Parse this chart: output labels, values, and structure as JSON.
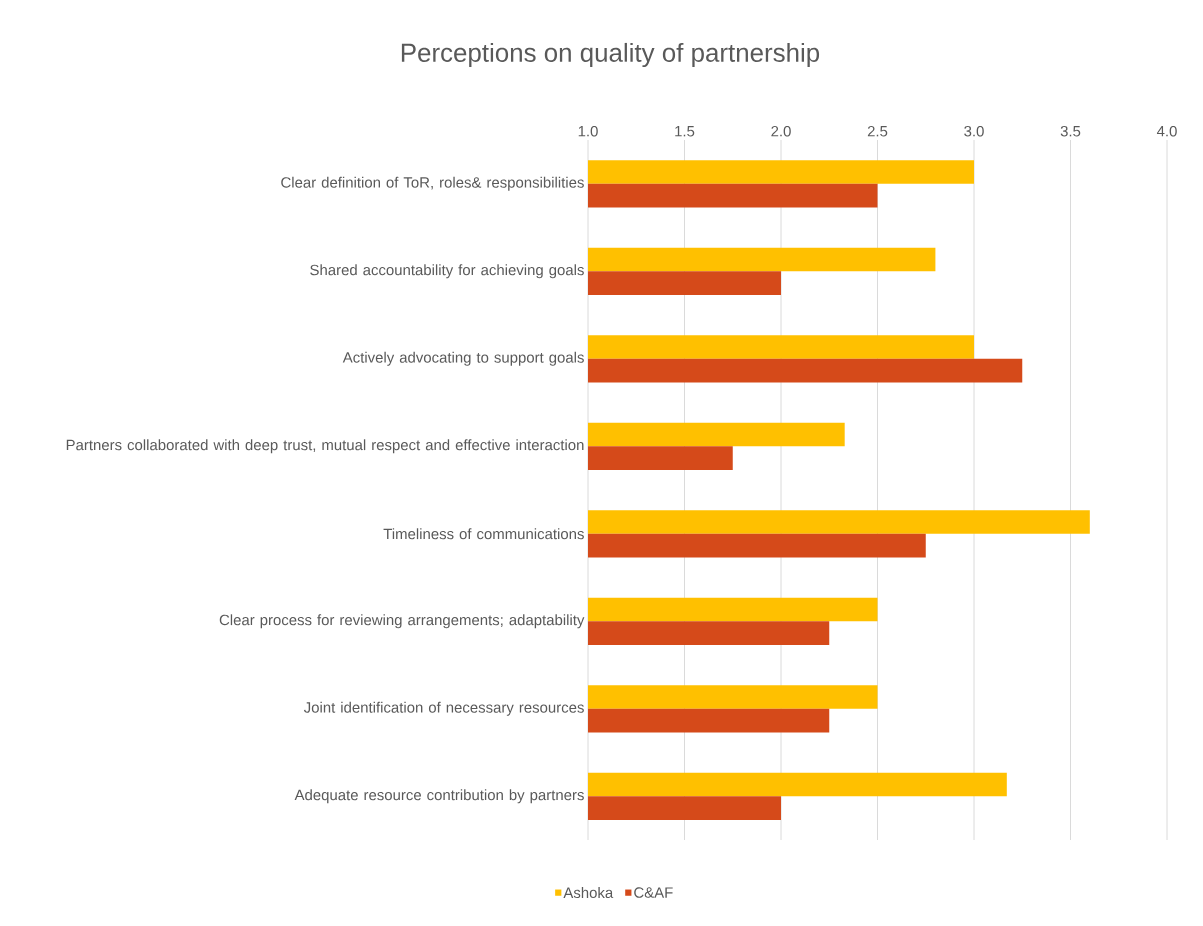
{
  "chart_data": {
    "type": "bar",
    "orientation": "horizontal",
    "title": "Perceptions on quality of partnership",
    "categories": [
      "Clear definition of ToR, roles& responsibilities",
      "Shared accountability for achieving goals",
      "Actively advocating to support goals",
      "Partners collaborated with deep trust, mutual respect and effective interaction",
      "Timeliness of communications",
      "Clear process for reviewing  arrangements; adaptability",
      "Joint identification of necessary resources",
      "Adequate resource contribution by partners"
    ],
    "series": [
      {
        "name": "Ashoka",
        "color": "#ffc000",
        "values": [
          3.0,
          2.8,
          3.0,
          2.33,
          3.6,
          2.5,
          2.5,
          3.17
        ]
      },
      {
        "name": "C&AF",
        "color": "#d54a1a",
        "values": [
          2.5,
          2.0,
          3.25,
          1.75,
          2.75,
          2.25,
          2.25,
          2.0
        ]
      }
    ],
    "xlim": [
      1,
      4
    ],
    "xticks": [
      {
        "value": 1,
        "label": "1.0"
      },
      {
        "value": 1.5,
        "label": "1.5"
      },
      {
        "value": 2,
        "label": "2.0"
      },
      {
        "value": 2.5,
        "label": "2.5"
      },
      {
        "value": 3,
        "label": "3.0"
      },
      {
        "value": 3.5,
        "label": "3.5"
      },
      {
        "value": 4,
        "label": "4.0"
      }
    ],
    "grid": "x",
    "legend": "bottom"
  }
}
